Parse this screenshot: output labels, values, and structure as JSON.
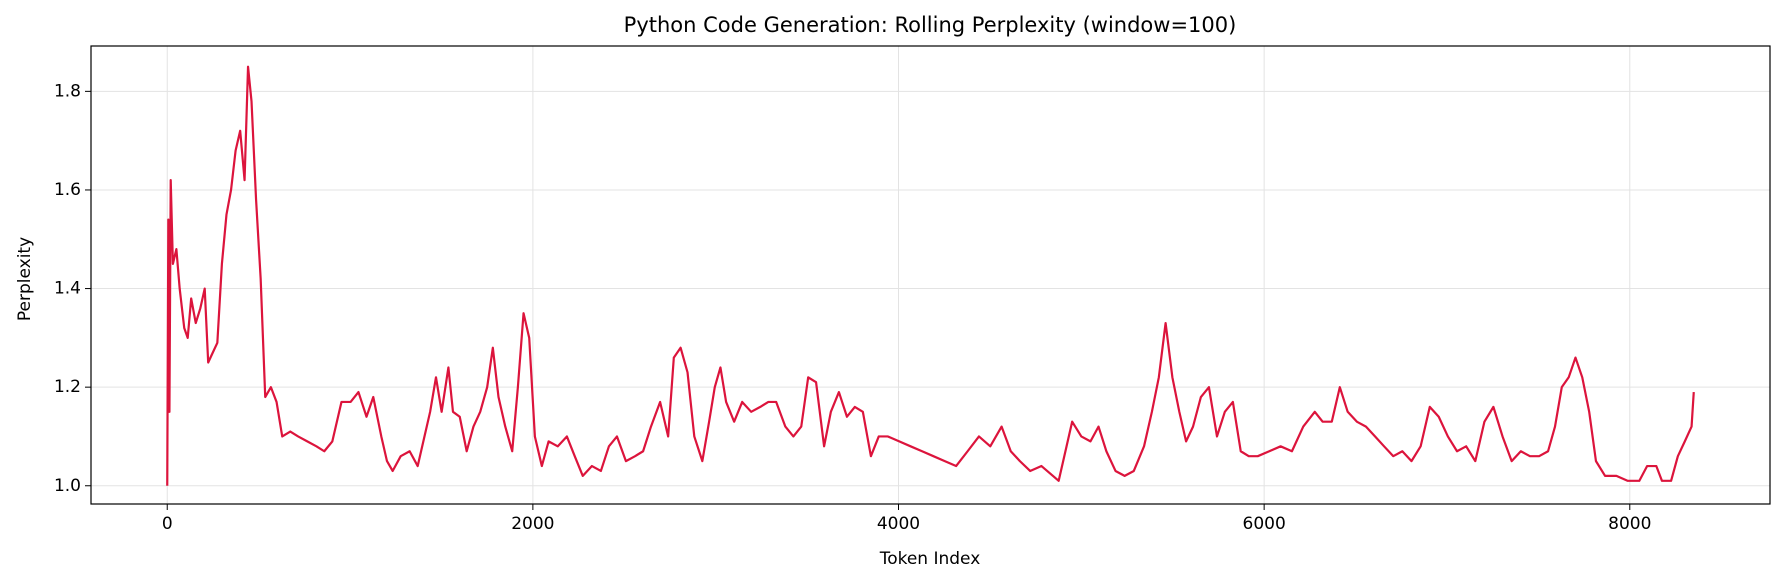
{
  "chart_data": {
    "type": "line",
    "title": "Python Code Generation: Rolling Perplexity (window=100)",
    "xlabel": "Token Index",
    "ylabel": "Perplexity",
    "color": "#dc143c",
    "grid": true,
    "xlim": [
      -417,
      8767
    ],
    "xticks": [
      0,
      2000,
      4000,
      6000,
      8000
    ],
    "ylim": [
      0.963,
      1.892
    ],
    "yticks": [
      {
        "value": 1,
        "label": "1.0"
      },
      1.2,
      1.4,
      1.6,
      1.8
    ],
    "x": [
      0,
      6,
      12,
      19,
      31,
      50,
      68,
      93,
      112,
      131,
      156,
      181,
      205,
      224,
      249,
      274,
      299,
      324,
      349,
      374,
      399,
      423,
      442,
      461,
      486,
      511,
      536,
      567,
      598,
      629,
      673,
      716,
      766,
      816,
      859,
      903,
      953,
      1003,
      1046,
      1090,
      1127,
      1171,
      1202,
      1233,
      1277,
      1326,
      1370,
      1407,
      1438,
      1470,
      1501,
      1538,
      1563,
      1600,
      1638,
      1675,
      1712,
      1750,
      1781,
      1812,
      1849,
      1887,
      1918,
      1949,
      1980,
      2011,
      2049,
      2086,
      2136,
      2186,
      2229,
      2273,
      2323,
      2372,
      2416,
      2460,
      2509,
      2559,
      2603,
      2646,
      2696,
      2740,
      2771,
      2808,
      2846,
      2883,
      2927,
      2964,
      2995,
      3026,
      3057,
      3101,
      3145,
      3194,
      3244,
      3288,
      3331,
      3381,
      3425,
      3468,
      3506,
      3549,
      3593,
      3630,
      3674,
      3718,
      3761,
      3805,
      3849,
      3892,
      3942,
      4004,
      4066,
      4129,
      4191,
      4253,
      4315,
      4378,
      4440,
      4502,
      4564,
      4614,
      4664,
      4720,
      4782,
      4845,
      4876,
      4907,
      4950,
      5000,
      5050,
      5094,
      5137,
      5187,
      5237,
      5287,
      5343,
      5386,
      5424,
      5461,
      5498,
      5536,
      5573,
      5611,
      5654,
      5698,
      5742,
      5785,
      5829,
      5872,
      5916,
      5965,
      6028,
      6090,
      6152,
      6214,
      6277,
      6320,
      6370,
      6414,
      6457,
      6507,
      6557,
      6607,
      6656,
      6706,
      6756,
      6806,
      6856,
      6906,
      6955,
      7005,
      7055,
      7105,
      7155,
      7205,
      7254,
      7304,
      7354,
      7404,
      7454,
      7504,
      7553,
      7591,
      7628,
      7666,
      7703,
      7740,
      7778,
      7815,
      7865,
      7927,
      7989,
      8052,
      8095,
      8145,
      8176,
      8226,
      8263,
      8301,
      8338,
      8350
    ],
    "values": [
      1.0,
      1.54,
      1.15,
      1.62,
      1.45,
      1.48,
      1.4,
      1.32,
      1.3,
      1.38,
      1.33,
      1.36,
      1.4,
      1.25,
      1.27,
      1.29,
      1.45,
      1.55,
      1.6,
      1.68,
      1.72,
      1.62,
      1.85,
      1.78,
      1.58,
      1.42,
      1.18,
      1.2,
      1.17,
      1.1,
      1.11,
      1.1,
      1.09,
      1.08,
      1.07,
      1.09,
      1.17,
      1.17,
      1.19,
      1.14,
      1.18,
      1.1,
      1.05,
      1.03,
      1.06,
      1.07,
      1.04,
      1.1,
      1.15,
      1.22,
      1.15,
      1.24,
      1.15,
      1.14,
      1.07,
      1.12,
      1.15,
      1.2,
      1.28,
      1.18,
      1.12,
      1.07,
      1.2,
      1.35,
      1.3,
      1.1,
      1.04,
      1.09,
      1.08,
      1.1,
      1.06,
      1.02,
      1.04,
      1.03,
      1.08,
      1.1,
      1.05,
      1.06,
      1.07,
      1.12,
      1.17,
      1.1,
      1.26,
      1.28,
      1.23,
      1.1,
      1.05,
      1.13,
      1.2,
      1.24,
      1.17,
      1.13,
      1.17,
      1.15,
      1.16,
      1.17,
      1.17,
      1.12,
      1.1,
      1.12,
      1.22,
      1.21,
      1.08,
      1.15,
      1.19,
      1.14,
      1.16,
      1.15,
      1.06,
      1.1,
      1.1,
      1.09,
      1.08,
      1.07,
      1.06,
      1.05,
      1.04,
      1.07,
      1.1,
      1.08,
      1.12,
      1.07,
      1.05,
      1.03,
      1.04,
      1.02,
      1.01,
      1.06,
      1.13,
      1.1,
      1.09,
      1.12,
      1.07,
      1.03,
      1.02,
      1.03,
      1.08,
      1.15,
      1.22,
      1.33,
      1.22,
      1.15,
      1.09,
      1.12,
      1.18,
      1.2,
      1.1,
      1.15,
      1.17,
      1.07,
      1.06,
      1.06,
      1.07,
      1.08,
      1.07,
      1.12,
      1.15,
      1.13,
      1.13,
      1.2,
      1.15,
      1.13,
      1.12,
      1.1,
      1.08,
      1.06,
      1.07,
      1.05,
      1.08,
      1.16,
      1.14,
      1.1,
      1.07,
      1.08,
      1.05,
      1.13,
      1.16,
      1.1,
      1.05,
      1.07,
      1.06,
      1.06,
      1.07,
      1.12,
      1.2,
      1.22,
      1.26,
      1.22,
      1.15,
      1.05,
      1.02,
      1.02,
      1.01,
      1.01,
      1.04,
      1.04,
      1.01,
      1.01,
      1.06,
      1.09,
      1.12,
      1.19
    ]
  }
}
